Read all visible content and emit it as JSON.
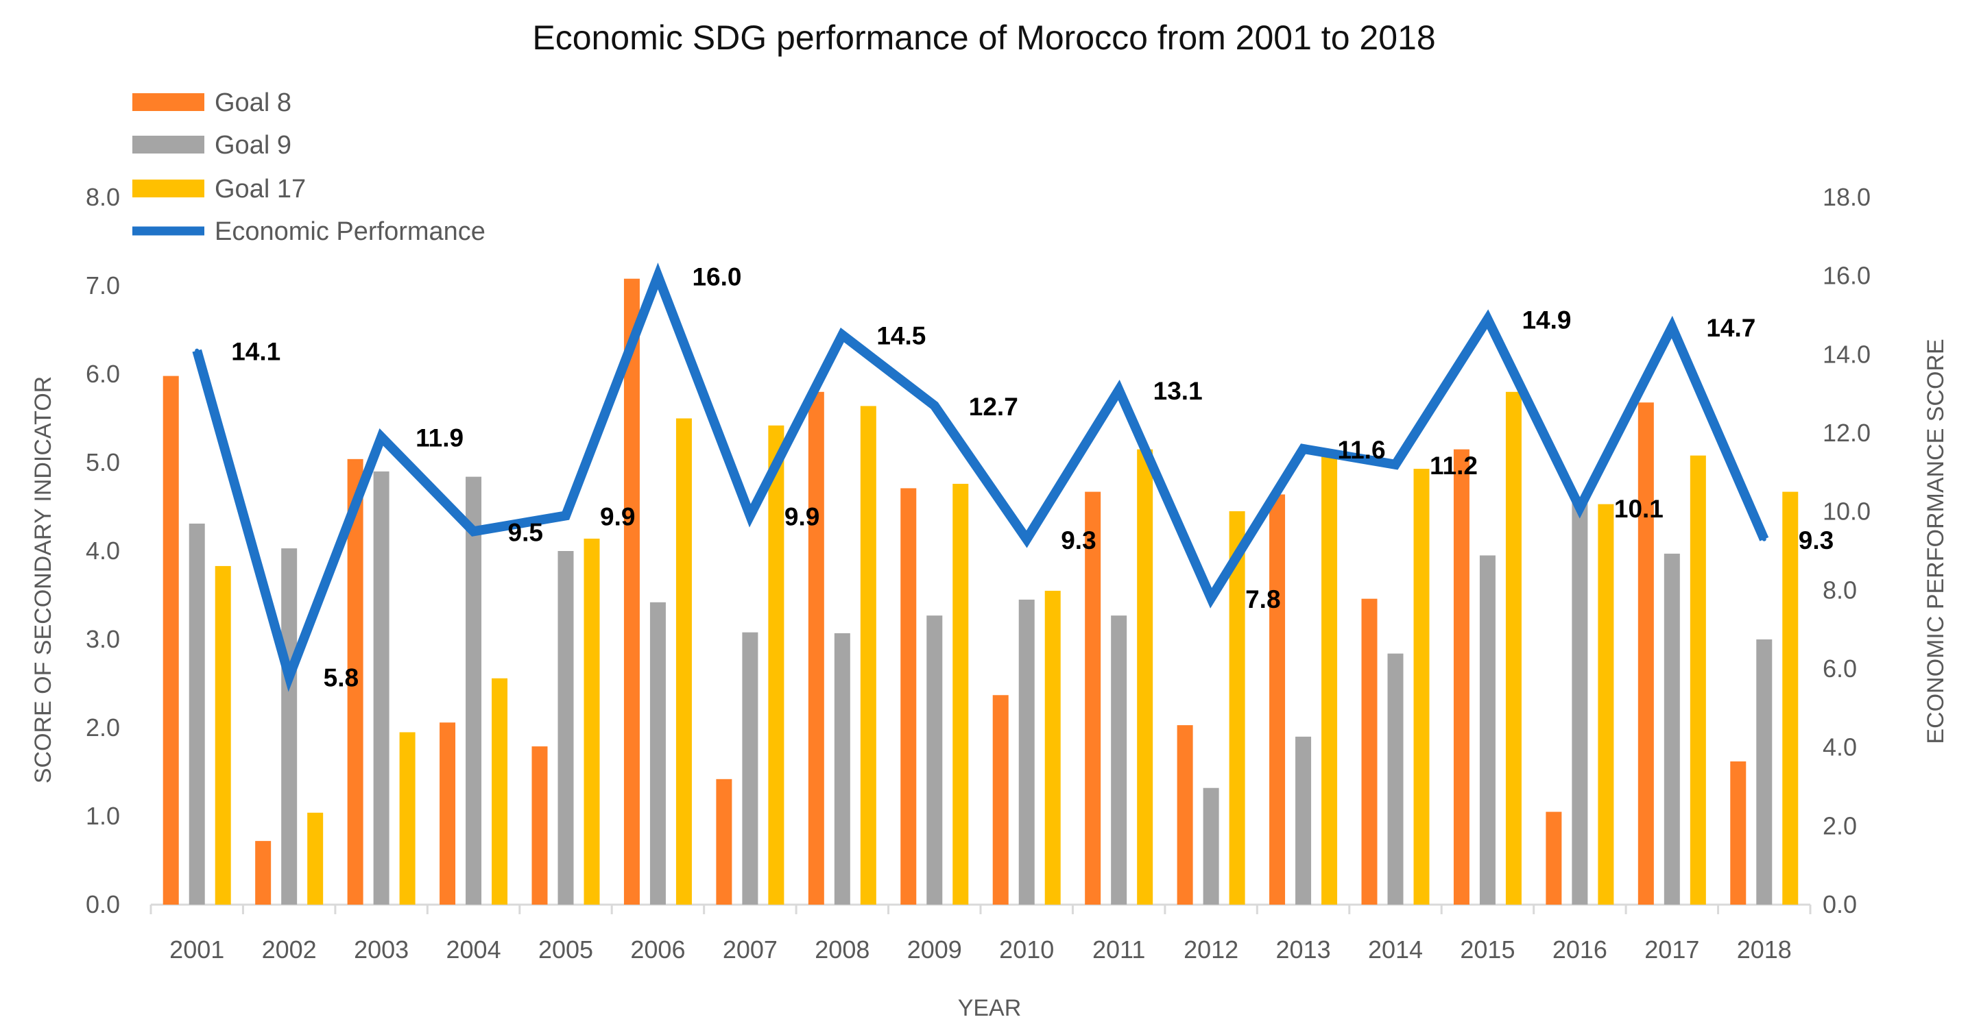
{
  "chart_data": {
    "type": "bar",
    "title": "Economic SDG performance of Morocco from 2001 to 2018",
    "xlabel": "YEAR",
    "ylabel": "SCORE OF SECONDARY INDICATOR",
    "y2label": "ECONOMIC PERFORMANCE SCORE",
    "ylim": [
      0,
      8
    ],
    "y2lim": [
      0,
      18
    ],
    "yticks": [
      "0.0",
      "1.0",
      "2.0",
      "3.0",
      "4.0",
      "5.0",
      "6.0",
      "7.0",
      "8.0"
    ],
    "y2ticks": [
      "0.0",
      "2.0",
      "4.0",
      "6.0",
      "8.0",
      "10.0",
      "12.0",
      "14.0",
      "16.0",
      "18.0"
    ],
    "legend_position": "top-left",
    "categories": [
      "2001",
      "2002",
      "2003",
      "2004",
      "2005",
      "2006",
      "2007",
      "2008",
      "2009",
      "2010",
      "2011",
      "2012",
      "2013",
      "2014",
      "2015",
      "2016",
      "2017",
      "2018"
    ],
    "series": [
      {
        "name": "Goal 8",
        "type": "bar",
        "axis": "left",
        "color": "#FF7F27",
        "values": [
          5.98,
          0.72,
          5.04,
          2.06,
          1.79,
          7.08,
          1.42,
          5.8,
          4.71,
          2.37,
          4.67,
          2.03,
          4.64,
          3.46,
          5.15,
          1.05,
          5.68,
          1.62
        ]
      },
      {
        "name": "Goal 9",
        "type": "bar",
        "axis": "left",
        "color": "#A5A5A5",
        "values": [
          4.31,
          4.03,
          4.9,
          4.84,
          4.0,
          3.42,
          3.08,
          3.07,
          3.27,
          3.45,
          3.27,
          1.32,
          1.9,
          2.84,
          3.95,
          4.6,
          3.97,
          3.0
        ]
      },
      {
        "name": "Goal 17",
        "type": "bar",
        "axis": "left",
        "color": "#FFC000",
        "values": [
          3.83,
          1.04,
          1.95,
          2.56,
          4.14,
          5.5,
          5.42,
          5.64,
          4.76,
          3.55,
          5.15,
          4.45,
          5.1,
          4.93,
          5.8,
          4.53,
          5.08,
          4.67
        ]
      },
      {
        "name": "Economic Performance",
        "type": "line",
        "axis": "right",
        "color": "#1F73C8",
        "values": [
          14.1,
          5.8,
          11.9,
          9.5,
          9.9,
          16.0,
          9.9,
          14.5,
          12.7,
          9.3,
          13.1,
          7.8,
          11.6,
          11.2,
          14.9,
          10.1,
          14.7,
          9.3
        ],
        "labels": [
          "14.1",
          "5.8",
          "11.9",
          "9.5",
          "9.9",
          "16.0",
          "9.9",
          "14.5",
          "12.7",
          "9.3",
          "13.1",
          "7.8",
          "11.6",
          "11.2",
          "14.9",
          "10.1",
          "14.7",
          "9.3"
        ]
      }
    ]
  }
}
